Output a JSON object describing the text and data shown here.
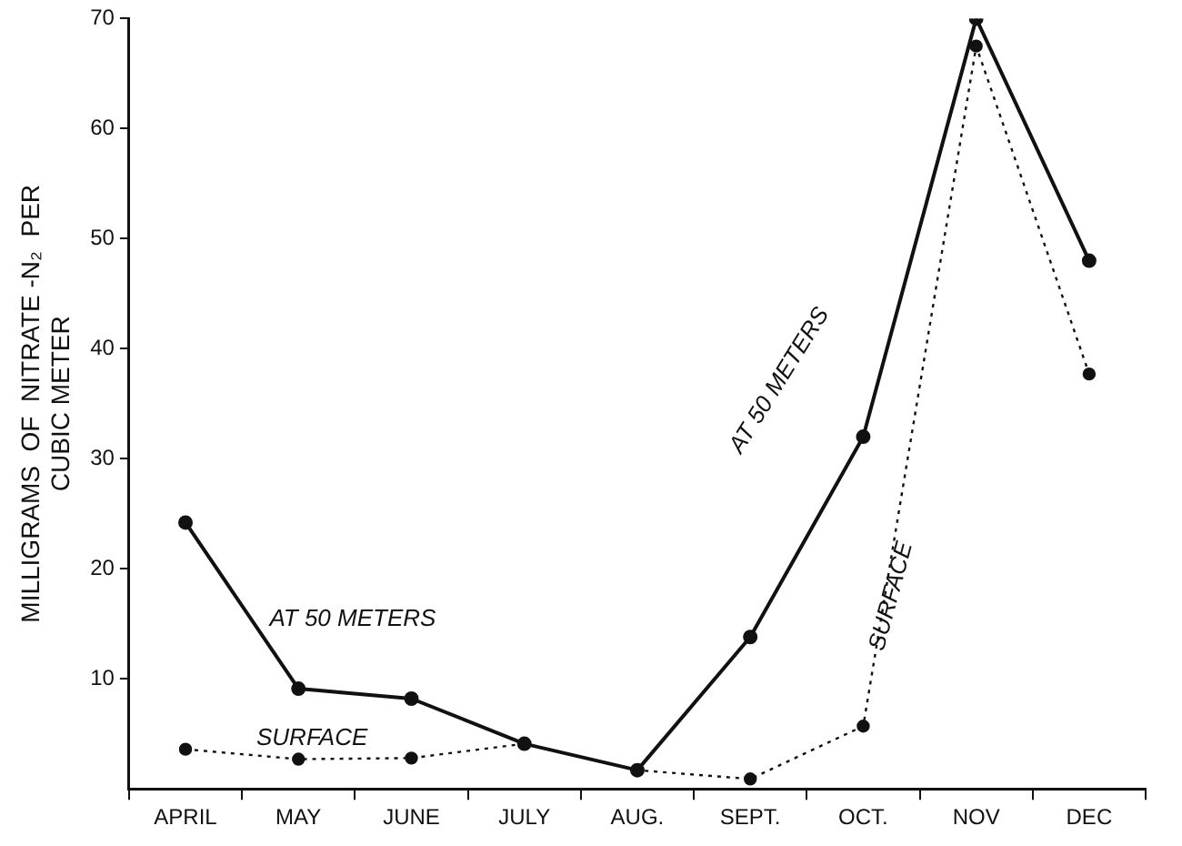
{
  "chart_data": {
    "type": "line",
    "ylabel": "MILLIGRAMS  OF  NITRATE -N₂  PER\nCUBIC METER",
    "categories": [
      "APRIL",
      "MAY",
      "JUNE",
      "JULY",
      "AUG.",
      "SEPT.",
      "OCT.",
      "NOV",
      "DEC"
    ],
    "series": [
      {
        "color": "#111111",
        "line_style": "solid",
        "values": [
          24.2,
          9.1,
          8.2,
          4.1,
          1.7,
          13.8,
          32,
          70,
          48
        ]
      },
      {
        "color": "#111111",
        "line_style": "dotted",
        "values": [
          3.6,
          2.7,
          2.8,
          4.1,
          1.7,
          0.9,
          5.7,
          67.5,
          37.7
        ]
      }
    ],
    "ylim": [
      0,
      70
    ],
    "yticks": [
      10,
      20,
      30,
      40,
      50,
      60,
      70
    ],
    "grid": false,
    "legend": false,
    "marker": "circle",
    "annotations": [
      "AT 50 METERS",
      "AT 50 METERS",
      "SURFACE",
      "SURFACE"
    ]
  }
}
